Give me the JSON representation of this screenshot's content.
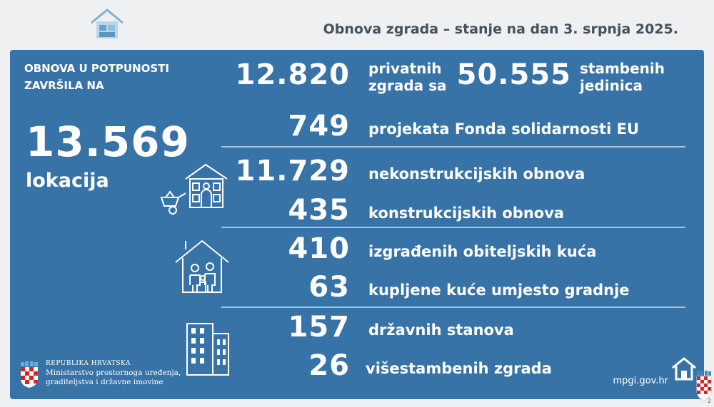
{
  "header": {
    "title": "Obnova zgrada – stanje na dan 3. srpnja 2025."
  },
  "intro": {
    "line1": "OBNOVA U POTPUNOSTI",
    "line2": "ZAVRŠILA NA"
  },
  "total": {
    "value": "13.569",
    "unit": "lokacija"
  },
  "stats": {
    "private_buildings": {
      "value": "12.820",
      "label_line1": "privatnih",
      "label_line2": "zgrada sa"
    },
    "residential_units": {
      "value": "50.555",
      "label_line1": "stambenih",
      "label_line2": "jedinica"
    },
    "eu_fund": {
      "value": "749",
      "label": "projekata Fonda solidarnosti EU"
    },
    "nonstructural": {
      "value": "11.729",
      "label": "nekonstrukcijskih obnova"
    },
    "structural": {
      "value": "435",
      "label": "konstrukcijskih obnova"
    },
    "family_houses": {
      "value": "410",
      "label": "izgrađenih obiteljskih kuća"
    },
    "purchased_houses": {
      "value": "63",
      "label": "kupljene kuće umjesto gradnje"
    },
    "state_flats": {
      "value": "157",
      "label": "državnih stanova"
    },
    "multi_residential": {
      "value": "26",
      "label": "višestambenih zgrada"
    }
  },
  "footer": {
    "org_line1": "REPUBLIKA HRVATSKA",
    "org_line2": "Ministarstvo prostornoga uređenja,",
    "org_line3": "graditeljstva i državne imovine",
    "website": "mpgi.gov.hr",
    "page_number": "2"
  },
  "icons": [
    "house-logo-icon",
    "house-renovation-icon",
    "family-house-icon",
    "apartment-building-icon",
    "coat-of-arms-icon",
    "home-icon"
  ],
  "colors": {
    "panel": "#3773a7",
    "text": "#ffffff",
    "header_text": "#45525c",
    "divider": "#a9c3da"
  }
}
